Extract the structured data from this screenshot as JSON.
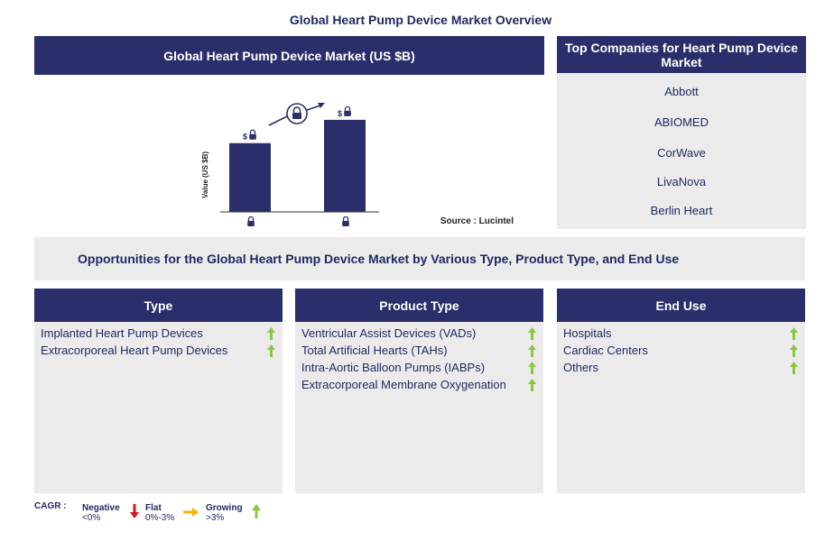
{
  "page_title": "Global Heart Pump Device Market Overview",
  "chart_header": "Global Heart Pump Device Market (US $B)",
  "chart_data": {
    "type": "bar",
    "categories": [
      "",
      ""
    ],
    "values": [
      0.62,
      0.83
    ],
    "ylabel": "Value (US $B)",
    "xlabel": "",
    "ylim": [
      0,
      1
    ],
    "value_labels_locked": true,
    "growth_arrow": true,
    "source": "Source : Lucintel",
    "bar_color": "#2a2f6b"
  },
  "companies": {
    "header": "Top Companies for Heart Pump Device Market",
    "items": [
      "Abbott",
      "ABIOMED",
      "CorWave",
      "LivaNova",
      "Berlin Heart"
    ]
  },
  "opportunities_title": "Opportunities for the Global Heart Pump Device Market by Various Type, Product Type, and End Use",
  "segments": [
    {
      "title": "Type",
      "items": [
        "Implanted Heart Pump Devices",
        "Extracorporeal Heart Pump Devices"
      ]
    },
    {
      "title": "Product Type",
      "items": [
        "Ventricular Assist Devices (VADs)",
        "Total Artificial Hearts (TAHs)",
        "Intra-Aortic Balloon Pumps (IABPs)",
        "Extracorporeal Membrane Oxygenation"
      ]
    },
    {
      "title": "End Use",
      "items": [
        "Hospitals",
        "Cardiac Centers",
        "Others"
      ]
    }
  ],
  "legend": {
    "cagr_label": "CAGR :",
    "negative_label": "Negative",
    "negative_range": "<0%",
    "flat_label": "Flat",
    "flat_range": "0%-3%",
    "growing_label": "Growing",
    "growing_range": ">3%"
  },
  "colors": {
    "header_bg": "#2a2f6b",
    "panel_bg": "#ebebeb",
    "growing": "#8dc63f",
    "flat": "#f7b500",
    "negative": "#d7191c"
  }
}
